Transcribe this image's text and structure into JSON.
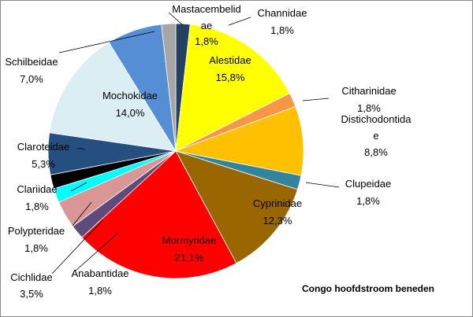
{
  "chart_data": {
    "type": "pie",
    "subtitle": "Congo hoofdstroom beneden",
    "categories": [
      "Channidae",
      "Alestidae",
      "Citharinidae",
      "Distichodontidae",
      "Clupeidae",
      "Cyprinidae",
      "Mormyridae",
      "Anabantidae",
      "Cichlidae",
      "Polypteridae",
      "Clariidae",
      "Claroteidae",
      "Mochokidae",
      "Schilbeidae",
      "Mastacembelidae"
    ],
    "values": [
      1.8,
      15.8,
      1.8,
      8.8,
      1.8,
      12.3,
      21.1,
      1.8,
      3.5,
      1.8,
      1.8,
      5.3,
      14.0,
      7.0,
      1.8
    ],
    "value_labels": [
      "1,8%",
      "15,8%",
      "1,8%",
      "8,8%",
      "1,8%",
      "12,3%",
      "21,1%",
      "1,8%",
      "3,5%",
      "1,8%",
      "1,8%",
      "5,3%",
      "14,0%",
      "7,0%",
      "1,8%"
    ],
    "colors": [
      "#254061",
      "#ffff00",
      "#f79646",
      "#ffc000",
      "#31849b",
      "#996600",
      "#ff0000",
      "#604a7b",
      "#d99694",
      "#00ffff",
      "#000000",
      "#254f7f",
      "#dbeef4",
      "#558ed5",
      "#a6a6a6"
    ]
  }
}
